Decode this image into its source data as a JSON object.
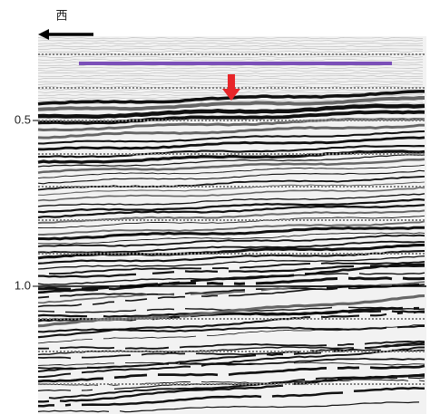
{
  "direction_label": "西",
  "axis": {
    "tick_labels": [
      "0.5",
      "1.0"
    ]
  }
}
